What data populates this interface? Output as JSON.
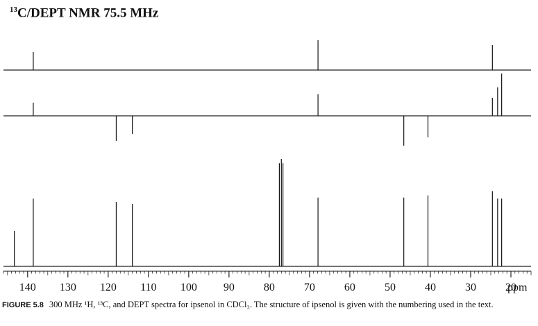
{
  "title": {
    "isotope_mass": "13",
    "text": "C/DEPT NMR 75.5 MHz"
  },
  "caption": {
    "label": "FIGURE 5.8",
    "text": "300 MHz ¹H, ¹³C, and DEPT spectra for ipsenol in CDCl₃. The structure of ipsenol is given with the numbering used in the text."
  },
  "chart_data": {
    "type": "line",
    "xlabel": "ppm",
    "xlim": [
      146,
      15
    ],
    "x_ticks": [
      140,
      130,
      120,
      110,
      100,
      90,
      80,
      70,
      60,
      50,
      40,
      30,
      20
    ],
    "panels": [
      {
        "peaks": [
          {
            "ppm": 138.6,
            "intensity": 0.26
          },
          {
            "ppm": 67.9,
            "intensity": 0.43
          },
          {
            "ppm": 24.6,
            "intensity": 0.36
          }
        ]
      },
      {
        "peaks": [
          {
            "ppm": 138.6,
            "intensity": 0.19
          },
          {
            "ppm": 118.0,
            "intensity": -0.36
          },
          {
            "ppm": 114.0,
            "intensity": -0.26
          },
          {
            "ppm": 67.9,
            "intensity": 0.31
          },
          {
            "ppm": 46.6,
            "intensity": -0.43
          },
          {
            "ppm": 40.6,
            "intensity": -0.31
          },
          {
            "ppm": 24.6,
            "intensity": 0.26
          },
          {
            "ppm": 23.3,
            "intensity": 0.41
          },
          {
            "ppm": 22.3,
            "intensity": 0.61
          }
        ]
      },
      {
        "peaks": [
          {
            "ppm": 143.3,
            "intensity": 0.33
          },
          {
            "ppm": 138.6,
            "intensity": 0.63
          },
          {
            "ppm": 118.0,
            "intensity": 0.6
          },
          {
            "ppm": 114.0,
            "intensity": 0.58
          },
          {
            "ppm": 77.5,
            "intensity": 0.96
          },
          {
            "ppm": 77.0,
            "intensity": 1.0
          },
          {
            "ppm": 76.6,
            "intensity": 0.96
          },
          {
            "ppm": 67.9,
            "intensity": 0.64
          },
          {
            "ppm": 46.6,
            "intensity": 0.64
          },
          {
            "ppm": 40.6,
            "intensity": 0.66
          },
          {
            "ppm": 24.6,
            "intensity": 0.7
          },
          {
            "ppm": 23.3,
            "intensity": 0.63
          },
          {
            "ppm": 22.3,
            "intensity": 0.63
          }
        ]
      }
    ]
  }
}
